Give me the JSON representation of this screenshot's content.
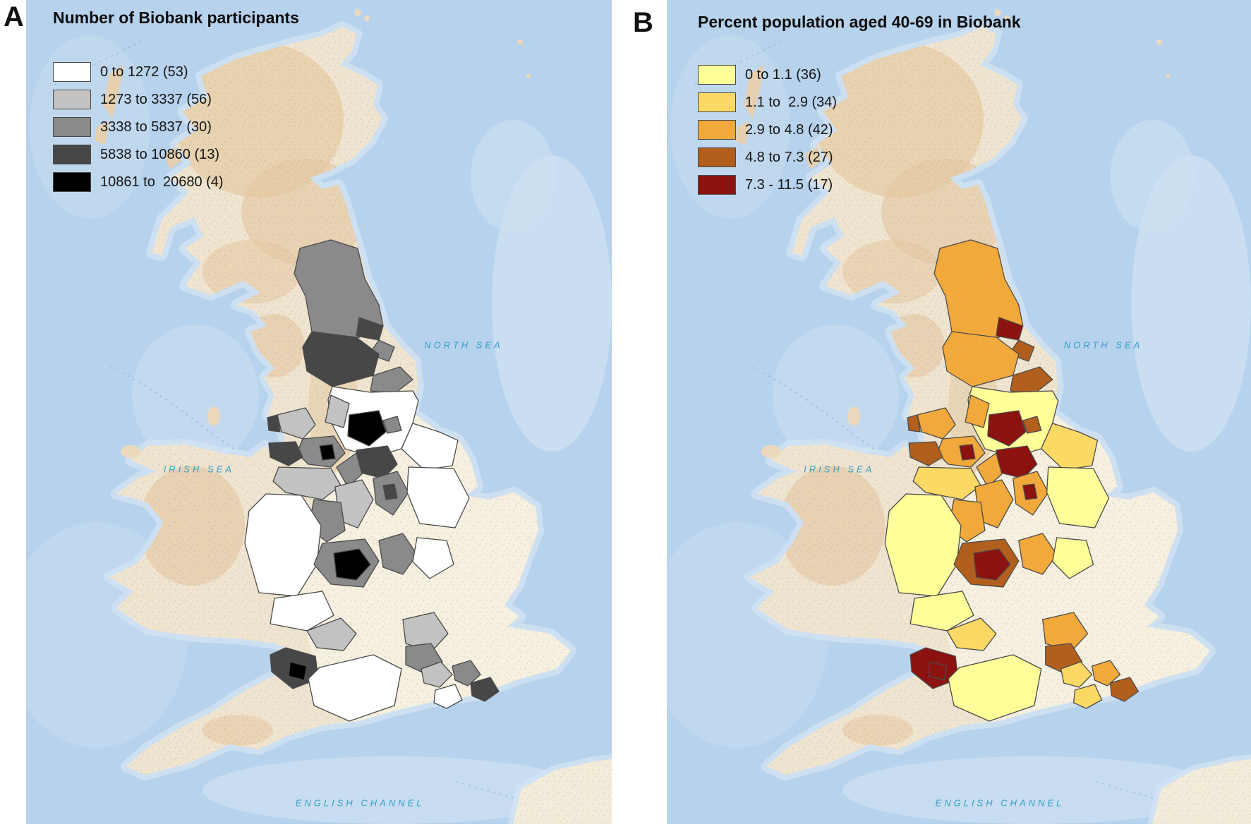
{
  "figure": {
    "type": "choropleth-map-pair",
    "basemap": {
      "sea_color": "#b7d2ec",
      "shallow_sea_color": "#cfe1f3",
      "land_color": "#efe4cf",
      "highland_color": "#e3c7a0",
      "region_border_color": "#4a4a4a",
      "sea_label_color": "#2f9dc4"
    },
    "panels": [
      {
        "letter": "A",
        "title": "Number of Biobank participants",
        "legend": [
          {
            "label": "0 to 1272 (53)",
            "color": "#ffffff"
          },
          {
            "label": "1273 to 3337 (56)",
            "color": "#c2c2c2"
          },
          {
            "label": "3338 to 5837 (30)",
            "color": "#8a8a8a"
          },
          {
            "label": "5838 to 10860 (13)",
            "color": "#474747"
          },
          {
            "label": "10861 to  20680 (4)",
            "color": "#000000"
          }
        ],
        "sea_labels": {
          "north_sea": "NORTH SEA",
          "irish_sea": "IRISH SEA",
          "english_channel": "ENGLISH CHANNEL"
        }
      },
      {
        "letter": "B",
        "title": "Percent population aged 40-69 in Biobank",
        "legend": [
          {
            "label": "0 to 1.1 (36)",
            "color": "#ffff99"
          },
          {
            "label": "1.1 to  2.9 (34)",
            "color": "#fbd964"
          },
          {
            "label": "2.9 to 4.8 (42)",
            "color": "#f2a93c"
          },
          {
            "label": "4.8 to 7.3 (27)",
            "color": "#b25f1e"
          },
          {
            "label": "7.3 - 11.5 (17)",
            "color": "#8c1210"
          }
        ],
        "sea_labels": {
          "north_sea": "NORTH SEA",
          "irish_sea": "IRISH SEA",
          "english_channel": "ENGLISH CHANNEL"
        }
      }
    ],
    "regions": [
      {
        "id": "northumberland",
        "class_a": 2,
        "class_b": 2
      },
      {
        "id": "tyneside",
        "class_a": 3,
        "class_b": 4
      },
      {
        "id": "sunderland",
        "class_a": 2,
        "class_b": 3
      },
      {
        "id": "durham",
        "class_a": 3,
        "class_b": 2
      },
      {
        "id": "teesside",
        "class_a": 2,
        "class_b": 3
      },
      {
        "id": "north-yorkshire",
        "class_a": 0,
        "class_b": 0
      },
      {
        "id": "east-riding",
        "class_a": 0,
        "class_b": 1
      },
      {
        "id": "york",
        "class_a": 2,
        "class_b": 3
      },
      {
        "id": "leeds",
        "class_a": 4,
        "class_b": 4
      },
      {
        "id": "harrogate",
        "class_a": 1,
        "class_b": 2
      },
      {
        "id": "preston",
        "class_a": 1,
        "class_b": 2
      },
      {
        "id": "blackpool",
        "class_a": 3,
        "class_b": 3
      },
      {
        "id": "greater-manchester",
        "class_a": 2,
        "class_b": 2
      },
      {
        "id": "manchester",
        "class_a": 4,
        "class_b": 4
      },
      {
        "id": "liverpool",
        "class_a": 3,
        "class_b": 3
      },
      {
        "id": "cheshire",
        "class_a": 1,
        "class_b": 1
      },
      {
        "id": "sheffield",
        "class_a": 3,
        "class_b": 4
      },
      {
        "id": "barnsley",
        "class_a": 2,
        "class_b": 2
      },
      {
        "id": "derbyshire",
        "class_a": 1,
        "class_b": 2
      },
      {
        "id": "nottinghamshire",
        "class_a": 2,
        "class_b": 2
      },
      {
        "id": "nottingham",
        "class_a": 3,
        "class_b": 4
      },
      {
        "id": "lincolnshire",
        "class_a": 0,
        "class_b": 0
      },
      {
        "id": "stoke-staffordshire",
        "class_a": 2,
        "class_b": 2
      },
      {
        "id": "shropshire-powys",
        "class_a": 0,
        "class_b": 0
      },
      {
        "id": "west-midlands",
        "class_a": 2,
        "class_b": 3
      },
      {
        "id": "birmingham",
        "class_a": 4,
        "class_b": 4
      },
      {
        "id": "leicestershire",
        "class_a": 2,
        "class_b": 2
      },
      {
        "id": "northamptonshire",
        "class_a": 0,
        "class_b": 0
      },
      {
        "id": "worcestershire",
        "class_a": 0,
        "class_b": 0
      },
      {
        "id": "gloucestershire",
        "class_a": 1,
        "class_b": 1
      },
      {
        "id": "bristol-bath",
        "class_a": 3,
        "class_b": 4
      },
      {
        "id": "bristol-core",
        "class_a": 4,
        "class_b": 4
      },
      {
        "id": "somerset-wiltshire",
        "class_a": 0,
        "class_b": 0
      },
      {
        "id": "oxfordshire",
        "class_a": 1,
        "class_b": 2
      },
      {
        "id": "swindon-berkshire",
        "class_a": 2,
        "class_b": 3
      },
      {
        "id": "aldershot-guildford",
        "class_a": 1,
        "class_b": 1
      },
      {
        "id": "surrey",
        "class_a": 2,
        "class_b": 2
      },
      {
        "id": "croydon",
        "class_a": 3,
        "class_b": 3
      },
      {
        "id": "sussex-fringe",
        "class_a": 0,
        "class_b": 1
      }
    ]
  }
}
